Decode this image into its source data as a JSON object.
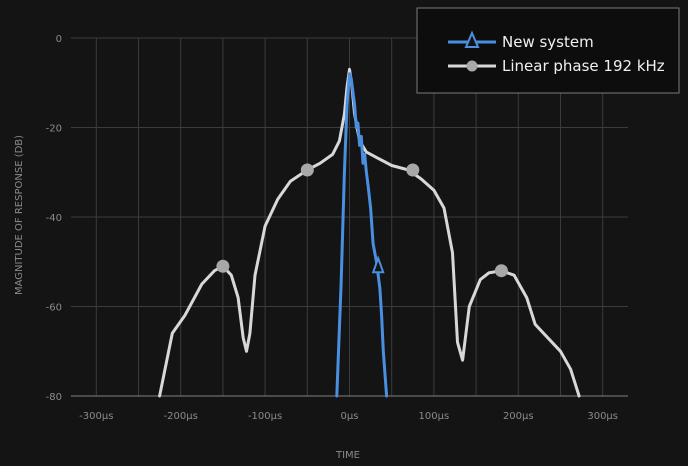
{
  "chart_data": {
    "type": "line",
    "title": "",
    "xlabel": "TIME",
    "ylabel": "MAGNITUDE OF RESPONSE (DB)",
    "xlim": [
      -330,
      330
    ],
    "ylim": [
      -80,
      0
    ],
    "grid": true,
    "legend_position": "top-right",
    "x_ticks": [
      -300,
      -200,
      -100,
      0,
      100,
      200,
      300
    ],
    "x_tick_labels": [
      "-300µs",
      "-200µs",
      "-100µs",
      "0µs",
      "100µs",
      "200µs",
      "300µs"
    ],
    "y_ticks": [
      0,
      -20,
      -40,
      -60,
      -80
    ],
    "y_tick_labels": [
      "0",
      "-20",
      "-40",
      "-60",
      "-80"
    ],
    "series": [
      {
        "name": "Linear phase 192 kHz",
        "color": "#d8d8d8",
        "marker": "circle",
        "x": [
          -225,
          -210,
          -195,
          -175,
          -160,
          -150,
          -140,
          -132,
          -126,
          -122,
          -118,
          -112,
          -100,
          -85,
          -70,
          -50,
          -35,
          -20,
          -12,
          -6,
          -3,
          0,
          3,
          6,
          12,
          20,
          35,
          50,
          70,
          85,
          100,
          112,
          122,
          128,
          134,
          142,
          155,
          165,
          180,
          195,
          210,
          220,
          235,
          250,
          262,
          272
        ],
        "y": [
          -80,
          -66,
          -62,
          -55,
          -52,
          -51,
          -53,
          -58,
          -67,
          -70,
          -66,
          -53,
          -42,
          -36,
          -32,
          -29.5,
          -28,
          -26,
          -23,
          -17,
          -11,
          -7,
          -11,
          -17,
          -23,
          -25.5,
          -27,
          -28.5,
          -29.5,
          -31.5,
          -34,
          -38,
          -48,
          -68,
          -72,
          -60,
          -54,
          -52.5,
          -52,
          -53,
          -58,
          -64,
          -67,
          -70,
          -74,
          -80
        ],
        "marker_x": [
          -150,
          -50,
          75,
          180
        ],
        "marker_y": [
          -51,
          -29.5,
          -29.5,
          -52
        ]
      },
      {
        "name": "New system",
        "color": "#4a8fe0",
        "marker": "triangle",
        "x": [
          -15,
          -10,
          -6,
          -3,
          0,
          2,
          4,
          6,
          8,
          10,
          12,
          14,
          16,
          18,
          20,
          22,
          25,
          28,
          32,
          36,
          38,
          40,
          44
        ],
        "y": [
          -80,
          -55,
          -30,
          -15,
          -8,
          -9,
          -12,
          -15,
          -20,
          -19,
          -24,
          -22,
          -28,
          -26,
          -30,
          -33,
          -38,
          -46,
          -50,
          -56,
          -62,
          -70,
          -80
        ],
        "marker_x": [
          34
        ],
        "marker_y": [
          -51
        ]
      }
    ]
  }
}
